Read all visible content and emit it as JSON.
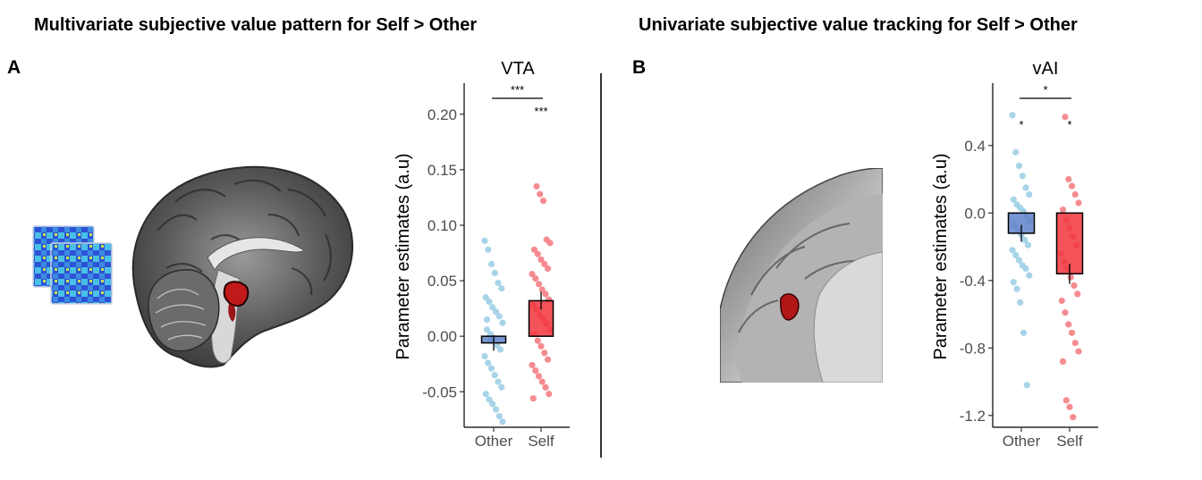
{
  "figure": {
    "title_left": "Multivariate subjective value pattern for Self > Other",
    "title_right": "Univariate subjective value tracking for Self > Other",
    "panel_a": "A",
    "panel_b": "B"
  },
  "colors": {
    "other_dot": "#9ecfe6",
    "self_dot": "#f47f85",
    "other_bar": "#5f82c8",
    "self_bar": "#f2353d",
    "roi_red": "#c21a1a"
  },
  "chart_data": [
    {
      "type": "bar",
      "title": "VTA",
      "ylabel": "Parameter estimates (a.u)",
      "categories": [
        "Other",
        "Self"
      ],
      "values": [
        -0.006,
        0.032
      ],
      "errors": [
        0.007,
        0.008
      ],
      "ylim": [
        -0.082,
        0.228
      ],
      "yticks": [
        -0.05,
        0.0,
        0.05,
        0.1,
        0.15,
        0.2
      ],
      "ytick_labels": [
        "-0.05",
        "0.00",
        "0.05",
        "0.10",
        "0.15",
        "0.20"
      ],
      "grid": false,
      "comparison": {
        "label": "***",
        "between": [
          "Other",
          "Self"
        ]
      },
      "point_labels": [
        {
          "category": "Self",
          "label": "***"
        }
      ],
      "points": {
        "Other": [
          0.086,
          0.078,
          0.065,
          0.057,
          0.048,
          0.043,
          0.035,
          0.031,
          0.026,
          0.022,
          0.018,
          0.012,
          0.006,
          0.002,
          -0.003,
          -0.008,
          -0.012,
          -0.018,
          -0.024,
          -0.029,
          -0.035,
          -0.041,
          -0.046,
          -0.052,
          -0.057,
          -0.061,
          -0.066,
          -0.072,
          -0.077,
          0.015,
          -0.004
        ],
        "Self": [
          0.135,
          0.128,
          0.122,
          0.087,
          0.084,
          0.078,
          0.074,
          0.069,
          0.065,
          0.061,
          0.056,
          0.052,
          0.047,
          0.042,
          0.038,
          0.033,
          0.028,
          0.024,
          0.019,
          0.015,
          0.011,
          0.006,
          0.002,
          -0.004,
          -0.009,
          -0.015,
          -0.021,
          -0.026,
          -0.031,
          -0.036,
          -0.041,
          -0.046,
          -0.052,
          -0.056
        ]
      }
    },
    {
      "type": "bar",
      "title": "vAI",
      "ylabel": "Parameter estimates (a.u)",
      "categories": [
        "Other",
        "Self"
      ],
      "values": [
        -0.12,
        -0.36
      ],
      "errors": [
        0.05,
        0.06
      ],
      "ylim": [
        -1.27,
        0.77
      ],
      "yticks": [
        -1.2,
        -0.8,
        -0.4,
        0.0,
        0.4
      ],
      "ytick_labels": [
        "-1.2",
        "-0.8",
        "-0.4",
        "0.0",
        "0.4"
      ],
      "grid": false,
      "comparison": {
        "label": "*",
        "between": [
          "Other",
          "Self"
        ]
      },
      "point_labels": [
        {
          "category": "Other",
          "label": "*"
        },
        {
          "category": "Self",
          "label": "*"
        }
      ],
      "points": {
        "Other": [
          0.58,
          0.36,
          0.28,
          0.22,
          0.15,
          0.11,
          0.08,
          0.05,
          0.03,
          0.01,
          -0.02,
          -0.05,
          -0.07,
          -0.1,
          -0.13,
          -0.16,
          -0.19,
          -0.22,
          -0.25,
          -0.28,
          -0.31,
          -0.33,
          -0.37,
          -0.41,
          -0.45,
          -0.53,
          -0.71,
          -1.02
        ],
        "Self": [
          0.57,
          0.2,
          0.16,
          0.11,
          0.06,
          0.02,
          -0.04,
          -0.09,
          -0.14,
          -0.19,
          -0.24,
          -0.29,
          -0.33,
          -0.38,
          -0.43,
          -0.48,
          -0.52,
          -0.59,
          -0.66,
          -0.71,
          -0.77,
          -0.82,
          -0.88,
          -1.11,
          -1.15,
          -1.21
        ]
      }
    }
  ]
}
